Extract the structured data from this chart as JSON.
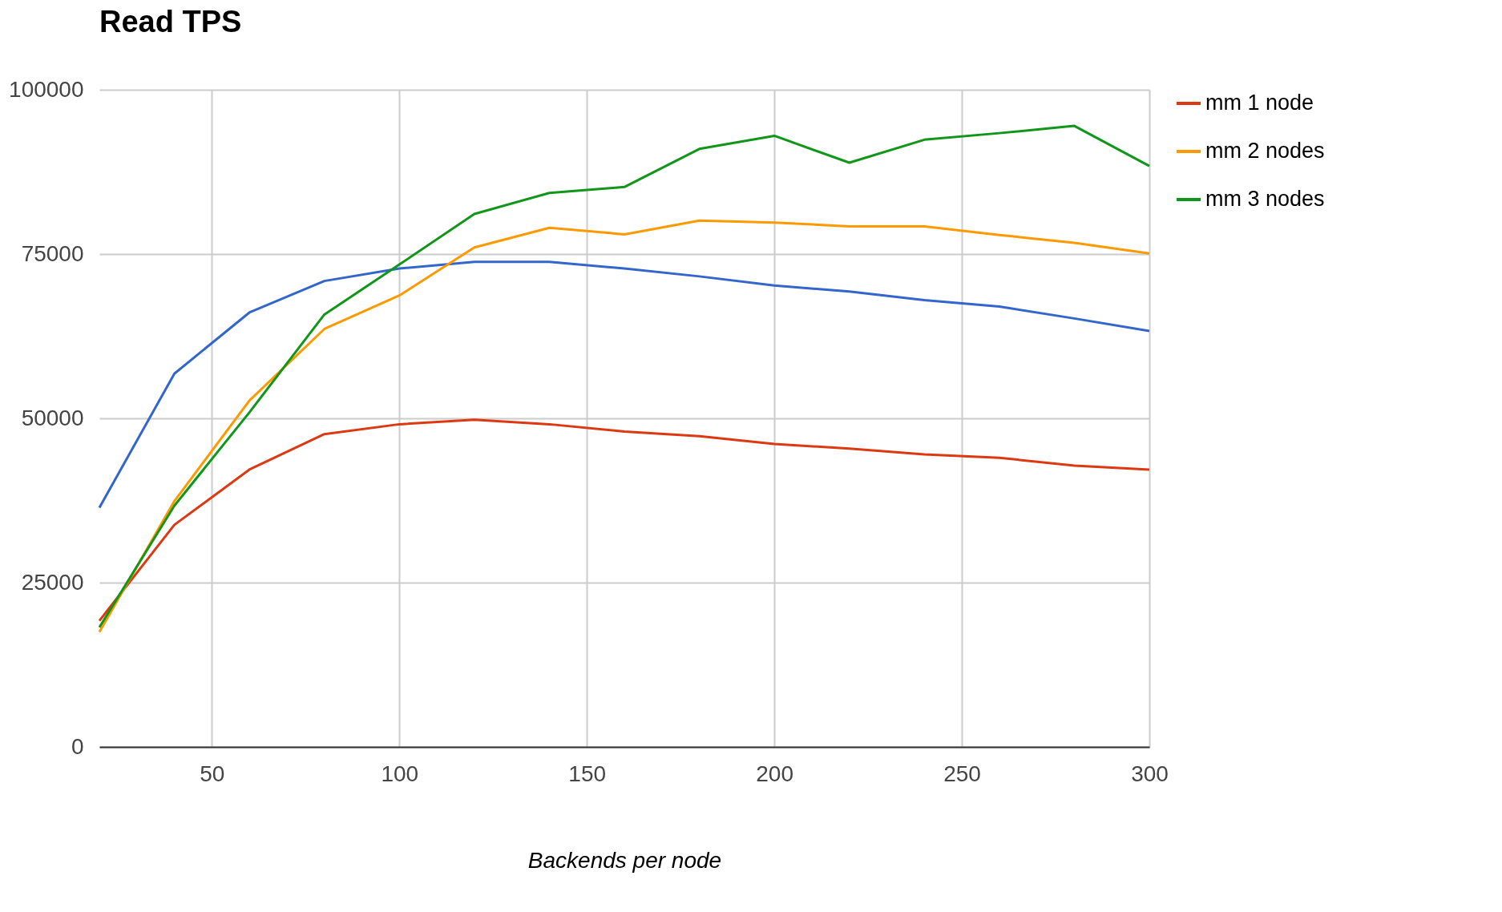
{
  "chart_data": {
    "type": "line",
    "title": "Read TPS",
    "xlabel": "Backends per node",
    "x": [
      20,
      40,
      60,
      80,
      100,
      120,
      140,
      160,
      180,
      200,
      220,
      240,
      260,
      280,
      300
    ],
    "xlim": [
      20,
      300
    ],
    "xticks": [
      50,
      100,
      150,
      200,
      250,
      300
    ],
    "ylim": [
      0,
      100000
    ],
    "yticks": [
      0,
      25000,
      50000,
      75000,
      100000
    ],
    "grid": true,
    "legend": "right",
    "marker": "none",
    "line_style": "solid",
    "series": [
      {
        "color": "#3366cc",
        "values": [
          36400,
          56800,
          66100,
          70900,
          72800,
          73800,
          73800,
          72800,
          71600,
          70200,
          69300,
          68000,
          67000,
          65200,
          63300
        ]
      },
      {
        "name": "mm 1 node",
        "color": "#dc3912",
        "values": [
          19200,
          33800,
          42200,
          47600,
          49100,
          49800,
          49100,
          48000,
          47300,
          46100,
          45400,
          44500,
          44000,
          42800,
          42200
        ]
      },
      {
        "name": "mm 2 nodes",
        "color": "#ff9900",
        "values": [
          17500,
          37400,
          52700,
          63600,
          68700,
          76000,
          79000,
          78000,
          80100,
          79800,
          79200,
          79200,
          77900,
          76700,
          75100
        ]
      },
      {
        "name": "mm 3 nodes",
        "color": "#109618",
        "values": [
          18200,
          36700,
          50900,
          65800,
          73400,
          81100,
          84300,
          85200,
          91000,
          93000,
          88900,
          92400,
          93400,
          94500,
          88400
        ]
      }
    ]
  }
}
